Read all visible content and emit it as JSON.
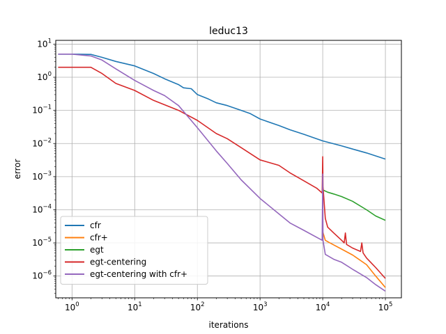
{
  "chart_data": {
    "type": "line",
    "title": "leduc13",
    "xlabel": "iterations",
    "ylabel": "error",
    "xscale": "log",
    "yscale": "log",
    "xlim": [
      0.55,
      180000
    ],
    "ylim": [
      2.2e-07,
      13
    ],
    "grid": true,
    "legend_position": "lower-left",
    "x_ticks": [
      {
        "value": 1,
        "base": "10",
        "exp": "0"
      },
      {
        "value": 10,
        "base": "10",
        "exp": "1"
      },
      {
        "value": 100,
        "base": "10",
        "exp": "2"
      },
      {
        "value": 1000,
        "base": "10",
        "exp": "3"
      },
      {
        "value": 10000,
        "base": "10",
        "exp": "4"
      },
      {
        "value": 100000,
        "base": "10",
        "exp": "5"
      }
    ],
    "y_ticks": [
      {
        "value": 1e-06,
        "base": "10",
        "exp": "−6"
      },
      {
        "value": 1e-05,
        "base": "10",
        "exp": "−5"
      },
      {
        "value": 0.0001,
        "base": "10",
        "exp": "−4"
      },
      {
        "value": 0.001,
        "base": "10",
        "exp": "−3"
      },
      {
        "value": 0.01,
        "base": "10",
        "exp": "−2"
      },
      {
        "value": 0.1,
        "base": "10",
        "exp": "−1"
      },
      {
        "value": 1,
        "base": "10",
        "exp": "0"
      },
      {
        "value": 10,
        "base": "10",
        "exp": "1"
      }
    ],
    "series": [
      {
        "name": "cfr",
        "color": "#1f77b4",
        "points": [
          [
            0.6,
            5.0
          ],
          [
            1,
            5.0
          ],
          [
            2,
            4.9
          ],
          [
            3,
            4.0
          ],
          [
            5,
            3.0
          ],
          [
            10,
            2.2
          ],
          [
            20,
            1.3
          ],
          [
            30,
            0.9
          ],
          [
            50,
            0.6
          ],
          [
            60,
            0.48
          ],
          [
            80,
            0.45
          ],
          [
            100,
            0.3
          ],
          [
            150,
            0.22
          ],
          [
            200,
            0.17
          ],
          [
            300,
            0.14
          ],
          [
            500,
            0.1
          ],
          [
            700,
            0.08
          ],
          [
            1000,
            0.055
          ],
          [
            2000,
            0.035
          ],
          [
            3000,
            0.026
          ],
          [
            5000,
            0.019
          ],
          [
            10000,
            0.012
          ],
          [
            20000,
            0.0085
          ],
          [
            30000,
            0.0068
          ],
          [
            50000,
            0.0052
          ],
          [
            100000,
            0.0034
          ]
        ]
      },
      {
        "name": "cfr+",
        "color": "#ff7f0e",
        "points": [
          [
            10000,
            2.2e-05
          ],
          [
            11000,
            1.2e-05
          ],
          [
            13000,
            1e-05
          ],
          [
            20000,
            6.5e-06
          ],
          [
            30000,
            4.3e-06
          ],
          [
            50000,
            2.2e-06
          ],
          [
            70000,
            1e-06
          ],
          [
            100000,
            4.5e-07
          ]
        ]
      },
      {
        "name": "egt",
        "color": "#2ca02c",
        "points": [
          [
            10000,
            0.0004
          ],
          [
            12000,
            0.00034
          ],
          [
            15000,
            0.0003
          ],
          [
            20000,
            0.00025
          ],
          [
            30000,
            0.00018
          ],
          [
            50000,
            0.0001
          ],
          [
            70000,
            6.5e-05
          ],
          [
            100000,
            4.8e-05
          ]
        ]
      },
      {
        "name": "egt-centering",
        "color": "#d62728",
        "points": [
          [
            0.6,
            2.0
          ],
          [
            2,
            2.0
          ],
          [
            3,
            1.3
          ],
          [
            5,
            0.65
          ],
          [
            10,
            0.4
          ],
          [
            20,
            0.2
          ],
          [
            50,
            0.1
          ],
          [
            100,
            0.05
          ],
          [
            200,
            0.02
          ],
          [
            300,
            0.014
          ],
          [
            500,
            0.0075
          ],
          [
            1000,
            0.0032
          ],
          [
            2000,
            0.0022
          ],
          [
            3000,
            0.0013
          ],
          [
            5000,
            0.00075
          ],
          [
            8000,
            0.00045
          ],
          [
            9800,
            0.00032
          ],
          [
            10000,
            0.004
          ],
          [
            10100,
            0.0005
          ],
          [
            11000,
            5.5e-05
          ],
          [
            12000,
            3e-05
          ],
          [
            15000,
            2e-05
          ],
          [
            20000,
            1.2e-05
          ],
          [
            22000,
            1e-05
          ],
          [
            23000,
            2e-05
          ],
          [
            24000,
            9e-06
          ],
          [
            30000,
            7e-06
          ],
          [
            40000,
            5.5e-06
          ],
          [
            42000,
            1e-05
          ],
          [
            44000,
            5e-06
          ],
          [
            50000,
            3.5e-06
          ],
          [
            70000,
            1.8e-06
          ],
          [
            100000,
            8.5e-07
          ]
        ]
      },
      {
        "name": "egt-centering with cfr+",
        "color": "#9467bd",
        "points": [
          [
            0.6,
            5.0
          ],
          [
            1,
            5.0
          ],
          [
            2,
            4.4
          ],
          [
            3,
            3.3
          ],
          [
            5,
            1.8
          ],
          [
            10,
            0.8
          ],
          [
            20,
            0.4
          ],
          [
            30,
            0.28
          ],
          [
            50,
            0.14
          ],
          [
            100,
            0.03
          ],
          [
            200,
            0.006
          ],
          [
            300,
            0.0025
          ],
          [
            500,
            0.0008
          ],
          [
            1000,
            0.00022
          ],
          [
            2000,
            7.5e-05
          ],
          [
            3000,
            4e-05
          ],
          [
            5000,
            2.4e-05
          ],
          [
            9800,
            1.2e-05
          ],
          [
            10000,
            0.0012
          ],
          [
            10100,
            1.2e-05
          ],
          [
            11000,
            4.5e-06
          ],
          [
            15000,
            3.2e-06
          ],
          [
            20000,
            2.6e-06
          ],
          [
            30000,
            1.6e-06
          ],
          [
            50000,
            9e-07
          ],
          [
            70000,
            5.5e-07
          ],
          [
            100000,
            3.5e-07
          ]
        ]
      }
    ]
  }
}
